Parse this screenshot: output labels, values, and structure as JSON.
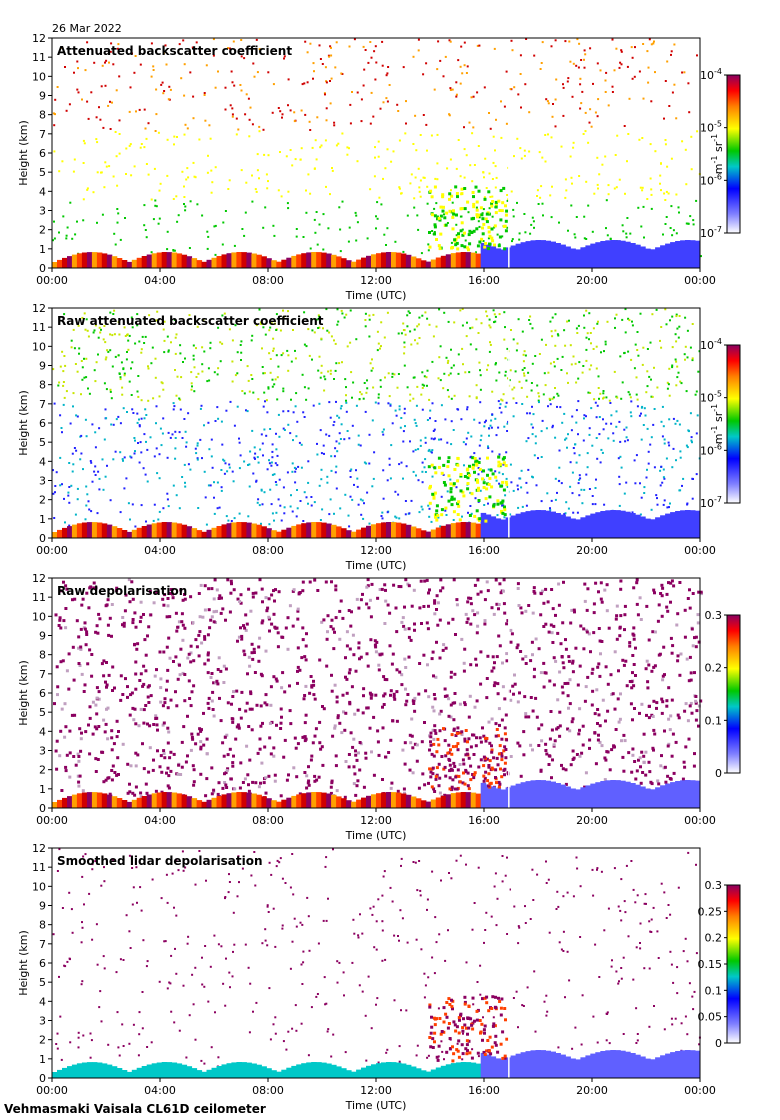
{
  "date": "26 Mar 2022",
  "footer": "Vehmasmaki Vaisala CL61D ceilometer",
  "chart_data": [
    {
      "type": "heatmap",
      "title": "Attenuated backscatter coefficient",
      "xlabel": "Time (UTC)",
      "ylabel": "Height (km)",
      "x_ticks": [
        "00:00",
        "04:00",
        "08:00",
        "12:00",
        "16:00",
        "20:00",
        "00:00"
      ],
      "y_ticks": [
        "0",
        "1",
        "2",
        "3",
        "4",
        "5",
        "6",
        "7",
        "8",
        "9",
        "10",
        "11",
        "12"
      ],
      "ylim": [
        0,
        12
      ],
      "colorbar": {
        "scale": "log",
        "ticks": [
          {
            "base": "10",
            "exp": "-4",
            "pos": 1.0
          },
          {
            "base": "10",
            "exp": "-5",
            "pos": 0.6667
          },
          {
            "base": "10",
            "exp": "-6",
            "pos": 0.3333
          },
          {
            "base": "10",
            "exp": "-7",
            "pos": 0.0
          }
        ],
        "unit": {
          "a": "m",
          "a_exp": "-1",
          "b": "sr",
          "b_exp": "-1"
        }
      }
    },
    {
      "type": "heatmap",
      "title": "Raw attenuated backscatter coefficient",
      "xlabel": "Time (UTC)",
      "ylabel": "Height (km)",
      "x_ticks": [
        "00:00",
        "04:00",
        "08:00",
        "12:00",
        "16:00",
        "20:00",
        "00:00"
      ],
      "y_ticks": [
        "0",
        "1",
        "2",
        "3",
        "4",
        "5",
        "6",
        "7",
        "8",
        "9",
        "10",
        "11",
        "12"
      ],
      "ylim": [
        0,
        12
      ],
      "colorbar": {
        "scale": "log",
        "ticks": [
          {
            "base": "10",
            "exp": "-4",
            "pos": 1.0
          },
          {
            "base": "10",
            "exp": "-5",
            "pos": 0.6667
          },
          {
            "base": "10",
            "exp": "-6",
            "pos": 0.3333
          },
          {
            "base": "10",
            "exp": "-7",
            "pos": 0.0
          }
        ],
        "unit": {
          "a": "m",
          "a_exp": "-1",
          "b": "sr",
          "b_exp": "-1"
        }
      }
    },
    {
      "type": "heatmap",
      "title": "Raw depolarisation",
      "xlabel": "Time (UTC)",
      "ylabel": "Height (km)",
      "x_ticks": [
        "00:00",
        "04:00",
        "08:00",
        "12:00",
        "16:00",
        "20:00",
        "00:00"
      ],
      "y_ticks": [
        "0",
        "1",
        "2",
        "3",
        "4",
        "5",
        "6",
        "7",
        "8",
        "9",
        "10",
        "11",
        "12"
      ],
      "ylim": [
        0,
        12
      ],
      "colorbar": {
        "scale": "linear",
        "range": [
          0,
          0.3
        ],
        "ticks": [
          {
            "label": "0.3",
            "pos": 1.0
          },
          {
            "label": "0.2",
            "pos": 0.6667
          },
          {
            "label": "0.1",
            "pos": 0.3333
          },
          {
            "label": "0",
            "pos": 0.0
          }
        ]
      }
    },
    {
      "type": "heatmap",
      "title": "Smoothed lidar depolarisation",
      "xlabel": "Time (UTC)",
      "ylabel": "Height (km)",
      "x_ticks": [
        "00:00",
        "04:00",
        "08:00",
        "12:00",
        "16:00",
        "20:00",
        "00:00"
      ],
      "y_ticks": [
        "0",
        "1",
        "2",
        "3",
        "4",
        "5",
        "6",
        "7",
        "8",
        "9",
        "10",
        "11",
        "12"
      ],
      "ylim": [
        0,
        12
      ],
      "colorbar": {
        "scale": "linear",
        "range": [
          0,
          0.3
        ],
        "ticks": [
          {
            "label": "0.3",
            "pos": 1.0
          },
          {
            "label": "0.25",
            "pos": 0.8333
          },
          {
            "label": "0.2",
            "pos": 0.6667
          },
          {
            "label": "0.15",
            "pos": 0.5
          },
          {
            "label": "0.1",
            "pos": 0.3333
          },
          {
            "label": "0.05",
            "pos": 0.1667
          },
          {
            "label": "0",
            "pos": 0.0
          }
        ]
      }
    }
  ]
}
